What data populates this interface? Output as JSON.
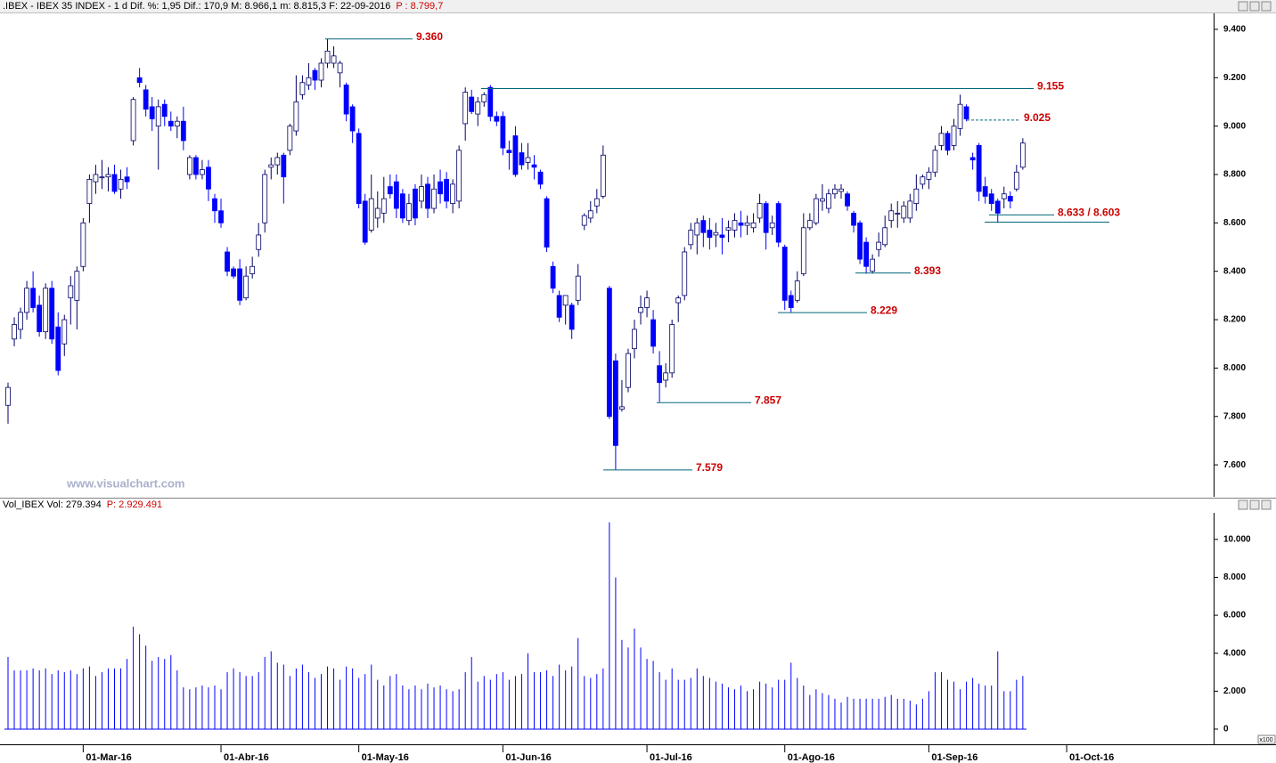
{
  "chart_data": [
    {
      "type": "candlestick",
      "title": ".IBEX - IBEX 35 INDEX - 1 d Dif. %: 1,95 Dif.: 170,9 M: 8.966,1 m: 8.815,3 F: 22-09-2016",
      "last_price": "P : 8.799,7",
      "watermark": "www.visualchart.com",
      "up_color": "#ffffff",
      "down_color": "#0000ff",
      "outline_color": "#000066",
      "annotation_color": "#cc0000",
      "annotation_line_color": "#00667a",
      "ylim": [
        7468,
        9466
      ],
      "yticks": [
        {
          "value": 7600,
          "label": "7.600"
        },
        {
          "value": 7800,
          "label": "7.800"
        },
        {
          "value": 8000,
          "label": "8.000"
        },
        {
          "value": 8200,
          "label": "8.200"
        },
        {
          "value": 8400,
          "label": "8.400"
        },
        {
          "value": 8600,
          "label": "8.600"
        },
        {
          "value": 8800,
          "label": "8.800"
        },
        {
          "value": 9000,
          "label": "9.000"
        },
        {
          "value": 9200,
          "label": "9.200"
        },
        {
          "value": 9400,
          "label": "9.400"
        }
      ],
      "annotations": [
        {
          "label": "9.360",
          "value": 9360
        },
        {
          "label": "9.155",
          "value": 9155
        },
        {
          "label": "9.025",
          "value": 9025,
          "line_style": "dashed"
        },
        {
          "label": "8.633 / 8.603",
          "values": [
            8633,
            8603
          ]
        },
        {
          "label": "8.393",
          "value": 8393
        },
        {
          "label": "8.229",
          "value": 8229
        },
        {
          "label": "7.857",
          "value": 7857
        },
        {
          "label": "7.579",
          "value": 7579
        }
      ],
      "ohlc": [
        [
          7846,
          7940,
          7770,
          7920
        ],
        [
          8120,
          8210,
          8090,
          8180
        ],
        [
          8160,
          8250,
          8120,
          8230
        ],
        [
          8230,
          8360,
          8200,
          8330
        ],
        [
          8330,
          8400,
          8230,
          8250
        ],
        [
          8260,
          8300,
          8130,
          8150
        ],
        [
          8150,
          8350,
          8120,
          8330
        ],
        [
          8330,
          8360,
          8100,
          8120
        ],
        [
          8170,
          8230,
          7970,
          7990
        ],
        [
          8100,
          8220,
          8050,
          8200
        ],
        [
          8290,
          8380,
          8180,
          8340
        ],
        [
          8280,
          8420,
          8160,
          8400
        ],
        [
          8420,
          8620,
          8400,
          8600
        ],
        [
          8680,
          8800,
          8600,
          8780
        ],
        [
          8770,
          8840,
          8720,
          8800
        ],
        [
          8790,
          8860,
          8740,
          8790
        ],
        [
          8790,
          8830,
          8730,
          8800
        ],
        [
          8800,
          8840,
          8720,
          8730
        ],
        [
          8740,
          8820,
          8700,
          8780
        ],
        [
          8790,
          8830,
          8740,
          8770
        ],
        [
          8940,
          9120,
          8920,
          9110
        ],
        [
          9200,
          9240,
          9160,
          9180
        ],
        [
          9150,
          9170,
          9040,
          9070
        ],
        [
          9080,
          9120,
          8980,
          9030
        ],
        [
          9000,
          9110,
          8820,
          9080
        ],
        [
          9090,
          9110,
          9000,
          9040
        ],
        [
          9020,
          9060,
          8980,
          9000
        ],
        [
          9000,
          9040,
          8950,
          9020
        ],
        [
          9020,
          9080,
          8900,
          8940
        ],
        [
          8800,
          8880,
          8780,
          8870
        ],
        [
          8870,
          8880,
          8780,
          8800
        ],
        [
          8800,
          8860,
          8780,
          8820
        ],
        [
          8830,
          8860,
          8690,
          8740
        ],
        [
          8700,
          8720,
          8600,
          8650
        ],
        [
          8650,
          8700,
          8580,
          8600
        ],
        [
          8480,
          8500,
          8380,
          8400
        ],
        [
          8410,
          8420,
          8370,
          8380
        ],
        [
          8410,
          8450,
          8260,
          8280
        ],
        [
          8290,
          8420,
          8280,
          8380
        ],
        [
          8390,
          8460,
          8370,
          8420
        ],
        [
          8490,
          8600,
          8460,
          8550
        ],
        [
          8600,
          8820,
          8560,
          8800
        ],
        [
          8830,
          8870,
          8780,
          8840
        ],
        [
          8840,
          8890,
          8800,
          8870
        ],
        [
          8880,
          8890,
          8680,
          8790
        ],
        [
          8900,
          9010,
          8880,
          9000
        ],
        [
          8980,
          9210,
          8960,
          9100
        ],
        [
          9130,
          9210,
          9110,
          9180
        ],
        [
          9170,
          9260,
          9150,
          9200
        ],
        [
          9230,
          9240,
          9150,
          9190
        ],
        [
          9190,
          9280,
          9160,
          9260
        ],
        [
          9260,
          9360,
          9240,
          9310
        ],
        [
          9260,
          9330,
          9240,
          9290
        ],
        [
          9220,
          9270,
          9160,
          9260
        ],
        [
          9170,
          9180,
          9020,
          9050
        ],
        [
          9080,
          9090,
          8930,
          8980
        ],
        [
          8970,
          8990,
          8660,
          8680
        ],
        [
          8690,
          8720,
          8510,
          8520
        ],
        [
          8570,
          8800,
          8560,
          8700
        ],
        [
          8620,
          8730,
          8580,
          8660
        ],
        [
          8640,
          8790,
          8600,
          8700
        ],
        [
          8750,
          8800,
          8700,
          8720
        ],
        [
          8770,
          8800,
          8620,
          8660
        ],
        [
          8720,
          8740,
          8600,
          8620
        ],
        [
          8610,
          8720,
          8590,
          8680
        ],
        [
          8740,
          8760,
          8590,
          8620
        ],
        [
          8690,
          8800,
          8660,
          8750
        ],
        [
          8760,
          8790,
          8620,
          8660
        ],
        [
          8660,
          8800,
          8640,
          8740
        ],
        [
          8770,
          8820,
          8680,
          8720
        ],
        [
          8780,
          8810,
          8660,
          8690
        ],
        [
          8680,
          8780,
          8640,
          8760
        ],
        [
          8690,
          8920,
          8660,
          8900
        ],
        [
          9010,
          9160,
          8940,
          9140
        ],
        [
          9120,
          9150,
          9050,
          9060
        ],
        [
          9050,
          9120,
          9000,
          9100
        ],
        [
          9100,
          9140,
          9080,
          9130
        ],
        [
          9160,
          9170,
          9020,
          9040
        ],
        [
          9040,
          9060,
          9000,
          9020
        ],
        [
          9040,
          9060,
          8880,
          8910
        ],
        [
          8900,
          8940,
          8820,
          8890
        ],
        [
          8960,
          9000,
          8790,
          8800
        ],
        [
          8890,
          8930,
          8820,
          8840
        ],
        [
          8850,
          8930,
          8820,
          8870
        ],
        [
          8840,
          8880,
          8780,
          8830
        ],
        [
          8810,
          8820,
          8740,
          8760
        ],
        [
          8700,
          8710,
          8480,
          8500
        ],
        [
          8420,
          8440,
          8310,
          8330
        ],
        [
          8300,
          8320,
          8190,
          8210
        ],
        [
          8260,
          8300,
          8180,
          8300
        ],
        [
          8260,
          8270,
          8120,
          8160
        ],
        [
          8280,
          8430,
          8260,
          8380
        ],
        [
          8590,
          8640,
          8570,
          8630
        ],
        [
          8620,
          8690,
          8600,
          8650
        ],
        [
          8670,
          8740,
          8640,
          8700
        ],
        [
          8710,
          8920,
          8700,
          8880
        ],
        [
          8330,
          8340,
          7790,
          7800
        ],
        [
          8030,
          8060,
          7580,
          7680
        ],
        [
          7830,
          7950,
          7820,
          7840
        ],
        [
          7920,
          8080,
          7900,
          8060
        ],
        [
          8080,
          8200,
          8040,
          8160
        ],
        [
          8230,
          8300,
          8180,
          8250
        ],
        [
          8250,
          8320,
          8210,
          8290
        ],
        [
          8200,
          8240,
          8060,
          8090
        ],
        [
          8010,
          8070,
          7860,
          7940
        ],
        [
          7950,
          8020,
          7920,
          7980
        ],
        [
          7980,
          8200,
          7960,
          8180
        ],
        [
          8270,
          8300,
          8190,
          8290
        ],
        [
          8300,
          8500,
          8280,
          8480
        ],
        [
          8510,
          8600,
          8490,
          8570
        ],
        [
          8550,
          8620,
          8470,
          8600
        ],
        [
          8610,
          8630,
          8500,
          8560
        ],
        [
          8570,
          8620,
          8490,
          8540
        ],
        [
          8550,
          8600,
          8500,
          8560
        ],
        [
          8550,
          8620,
          8470,
          8540
        ],
        [
          8570,
          8610,
          8520,
          8580
        ],
        [
          8570,
          8640,
          8540,
          8610
        ],
        [
          8600,
          8650,
          8540,
          8590
        ],
        [
          8590,
          8630,
          8550,
          8600
        ],
        [
          8580,
          8640,
          8560,
          8600
        ],
        [
          8620,
          8720,
          8600,
          8680
        ],
        [
          8680,
          8690,
          8490,
          8560
        ],
        [
          8580,
          8630,
          8550,
          8600
        ],
        [
          8680,
          8690,
          8500,
          8520
        ],
        [
          8500,
          8510,
          8240,
          8280
        ],
        [
          8300,
          8320,
          8230,
          8250
        ],
        [
          8280,
          8400,
          8270,
          8360
        ],
        [
          8390,
          8640,
          8380,
          8580
        ],
        [
          8580,
          8640,
          8570,
          8610
        ],
        [
          8600,
          8720,
          8590,
          8700
        ],
        [
          8690,
          8760,
          8650,
          8700
        ],
        [
          8660,
          8740,
          8640,
          8720
        ],
        [
          8720,
          8760,
          8700,
          8740
        ],
        [
          8730,
          8760,
          8700,
          8740
        ],
        [
          8720,
          8730,
          8650,
          8670
        ],
        [
          8640,
          8650,
          8560,
          8590
        ],
        [
          8600,
          8610,
          8430,
          8450
        ],
        [
          8520,
          8540,
          8390,
          8420
        ],
        [
          8400,
          8470,
          8390,
          8450
        ],
        [
          8490,
          8560,
          8460,
          8520
        ],
        [
          8510,
          8630,
          8500,
          8580
        ],
        [
          8610,
          8680,
          8580,
          8650
        ],
        [
          8640,
          8690,
          8580,
          8640
        ],
        [
          8620,
          8690,
          8600,
          8670
        ],
        [
          8620,
          8720,
          8600,
          8690
        ],
        [
          8680,
          8800,
          8650,
          8740
        ],
        [
          8760,
          8800,
          8740,
          8790
        ],
        [
          8780,
          8830,
          8740,
          8810
        ],
        [
          8810,
          8920,
          8790,
          8900
        ],
        [
          8920,
          9000,
          8900,
          8970
        ],
        [
          8970,
          8980,
          8880,
          8900
        ],
        [
          8920,
          9030,
          8900,
          9000
        ],
        [
          8990,
          9130,
          8960,
          9090
        ],
        [
          9080,
          9090,
          9020,
          9030
        ],
        [
          8870,
          8890,
          8820,
          8860
        ],
        [
          8920,
          8930,
          8690,
          8730
        ],
        [
          8750,
          8790,
          8680,
          8710
        ],
        [
          8720,
          8740,
          8650,
          8680
        ],
        [
          8690,
          8700,
          8600,
          8640
        ],
        [
          8700,
          8750,
          8660,
          8720
        ],
        [
          8710,
          8730,
          8660,
          8690
        ],
        [
          8740,
          8840,
          8730,
          8810
        ],
        [
          8830,
          8950,
          8820,
          8930
        ]
      ]
    },
    {
      "type": "bar",
      "title": "Vol_IBEX Vol: 279.394",
      "last_value": "P: 2.929.491",
      "unit_label": "x100",
      "color": "#0000ff",
      "ylim": [
        -800,
        11400
      ],
      "yticks": [
        0,
        {
          "value": 2000,
          "label": "2.000"
        },
        {
          "value": 4000,
          "label": "4.000"
        },
        {
          "value": 6000,
          "label": "6.000"
        },
        {
          "value": 8000,
          "label": "8.000"
        },
        {
          "value": 10000,
          "label": "10.000"
        }
      ],
      "xticks": [
        {
          "value": 12,
          "label": "01-Mar-16"
        },
        {
          "value": 34,
          "label": "01-Abr-16"
        },
        {
          "value": 56,
          "label": "01-May-16"
        },
        {
          "value": 79,
          "label": "01-Jun-16"
        },
        {
          "value": 102,
          "label": "01-Jul-16"
        },
        {
          "value": 124,
          "label": "01-Ago-16"
        },
        {
          "value": 147,
          "label": "01-Sep-16"
        },
        {
          "value": 169,
          "label": "01-Oct-16"
        }
      ],
      "values": [
        3800,
        3100,
        3100,
        3100,
        3200,
        3100,
        3200,
        2900,
        3100,
        3000,
        3100,
        2900,
        3200,
        3300,
        2800,
        3000,
        3200,
        3200,
        3200,
        3700,
        5400,
        5000,
        4400,
        3600,
        3800,
        3700,
        3900,
        3100,
        2200,
        2100,
        2200,
        2300,
        2200,
        2300,
        2100,
        3000,
        3200,
        3000,
        2800,
        2800,
        3000,
        3800,
        4100,
        3500,
        3400,
        2800,
        3200,
        3400,
        3000,
        2700,
        2900,
        3300,
        3200,
        2600,
        3300,
        3200,
        2700,
        2900,
        3400,
        2600,
        2300,
        2800,
        2900,
        2300,
        2100,
        2300,
        2100,
        2400,
        2200,
        2300,
        2100,
        2000,
        2100,
        3000,
        3800,
        2500,
        2800,
        2600,
        2900,
        3000,
        2600,
        2800,
        2900,
        4000,
        3000,
        3000,
        3100,
        2800,
        3400,
        3100,
        3300,
        4800,
        2800,
        2700,
        2900,
        3200,
        10900,
        8000,
        4700,
        4300,
        5300,
        4300,
        3700,
        3600,
        3000,
        2600,
        3200,
        2600,
        2600,
        2700,
        3200,
        2800,
        2700,
        2500,
        2400,
        2200,
        2100,
        2300,
        2000,
        2100,
        2500,
        2400,
        2200,
        2600,
        2600,
        3500,
        2700,
        2300,
        1800,
        2100,
        1900,
        1800,
        1600,
        1400,
        1700,
        1600,
        1600,
        1600,
        1600,
        1600,
        1700,
        1800,
        1600,
        1600,
        1500,
        1300,
        1600,
        2000,
        3000,
        3000,
        2600,
        2500,
        2100,
        2500,
        2700,
        2400,
        2300,
        2300,
        4100,
        2000,
        2000,
        2600,
        2800
      ]
    }
  ]
}
